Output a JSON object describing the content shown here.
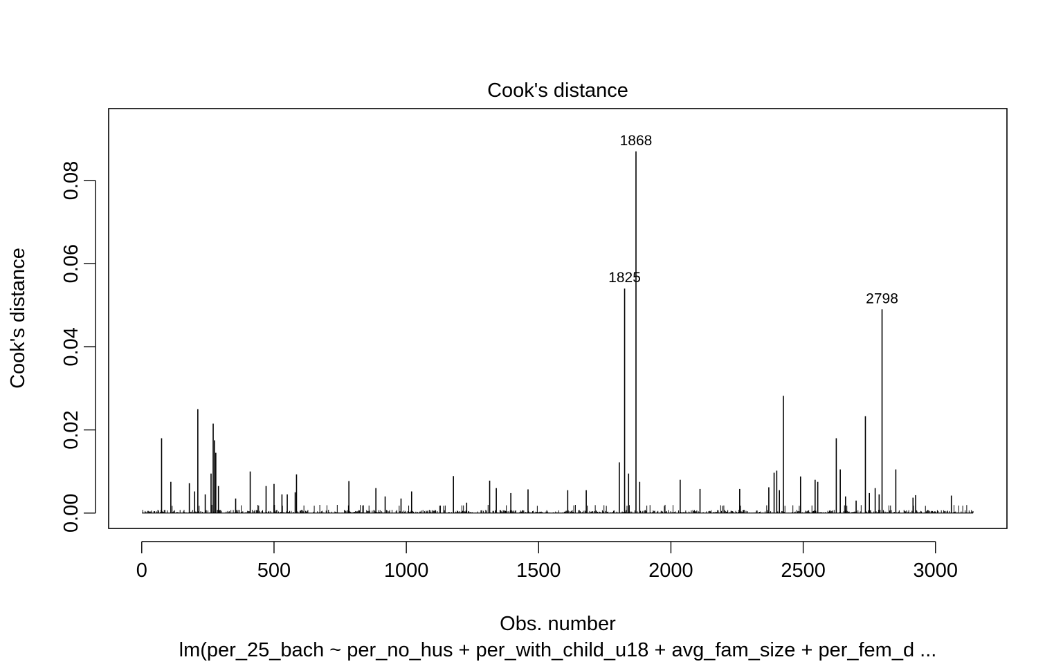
{
  "chart_data": {
    "type": "bar",
    "title": "Cook's distance",
    "xlabel": "Obs. number",
    "ylabel": "Cook's distance",
    "subtitle": "lm(per_25_bach ~ per_no_hus + per_with_child_u18 + avg_fam_size + per_fem_d ...",
    "xlim": [
      -125,
      3270
    ],
    "ylim": [
      -0.0037,
      0.0973
    ],
    "x_ticks": [
      0,
      500,
      1000,
      1500,
      2000,
      2500,
      3000
    ],
    "y_ticks": [
      0.0,
      0.02,
      0.04,
      0.06,
      0.08
    ],
    "x_tick_labels": [
      "0",
      "500",
      "1000",
      "1500",
      "2000",
      "2500",
      "3000"
    ],
    "y_tick_labels": [
      "0.00",
      "0.02",
      "0.04",
      "0.06",
      "0.08"
    ],
    "n_obs": 3142,
    "labeled_points": [
      {
        "x": 1825,
        "y": 0.054,
        "label": "1825"
      },
      {
        "x": 1868,
        "y": 0.087,
        "label": "1868"
      },
      {
        "x": 2798,
        "y": 0.049,
        "label": "2798"
      }
    ],
    "x": [
      75,
      110,
      180,
      200,
      212,
      240,
      262,
      270,
      275,
      280,
      290,
      355,
      410,
      470,
      500,
      530,
      550,
      580,
      585,
      783,
      885,
      920,
      980,
      1020,
      1178,
      1228,
      1315,
      1340,
      1395,
      1460,
      1610,
      1680,
      1805,
      1825,
      1840,
      1868,
      1882,
      2035,
      2110,
      2260,
      2370,
      2390,
      2400,
      2410,
      2425,
      2490,
      2545,
      2555,
      2625,
      2640,
      2660,
      2700,
      2735,
      2750,
      2772,
      2787,
      2798,
      2850,
      2915,
      2925,
      3060
    ],
    "values": [
      0.018,
      0.0075,
      0.0072,
      0.0052,
      0.025,
      0.0045,
      0.0095,
      0.0215,
      0.0175,
      0.0145,
      0.0065,
      0.0035,
      0.01,
      0.0065,
      0.007,
      0.0045,
      0.0045,
      0.005,
      0.0093,
      0.0077,
      0.006,
      0.004,
      0.0035,
      0.0052,
      0.0089,
      0.0025,
      0.0078,
      0.006,
      0.0048,
      0.0057,
      0.0055,
      0.0055,
      0.0122,
      0.054,
      0.0095,
      0.087,
      0.0075,
      0.008,
      0.0058,
      0.0058,
      0.0062,
      0.0097,
      0.0102,
      0.0055,
      0.0282,
      0.0088,
      0.008,
      0.0075,
      0.018,
      0.0105,
      0.004,
      0.003,
      0.0233,
      0.0048,
      0.006,
      0.0045,
      0.049,
      0.0105,
      0.0037,
      0.0043,
      0.0042
    ],
    "noise_level": 0.0009,
    "grid": false,
    "legend": "none"
  }
}
